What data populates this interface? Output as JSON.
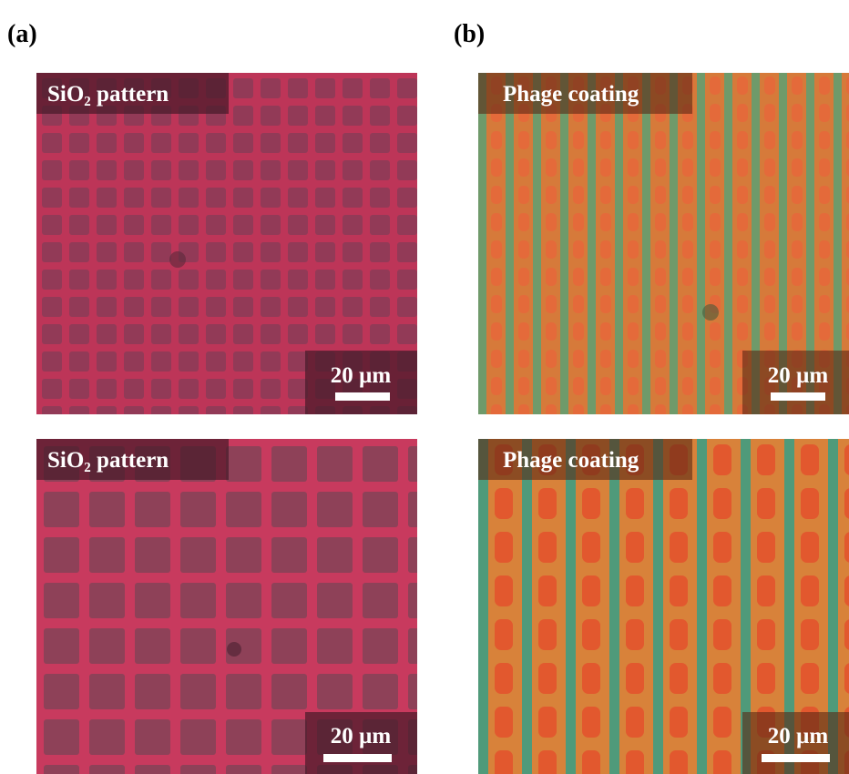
{
  "panels": [
    {
      "label": "(a)"
    },
    {
      "label": "(b)"
    }
  ],
  "images": [
    {
      "caption": "SiO₂ pattern",
      "scale_bar": "20 µm"
    },
    {
      "caption": "Phage coating",
      "scale_bar": "20 µm"
    },
    {
      "caption": "SiO₂ pattern",
      "scale_bar": "20 µm"
    },
    {
      "caption": "Phage coating",
      "scale_bar": "20 µm"
    }
  ]
}
